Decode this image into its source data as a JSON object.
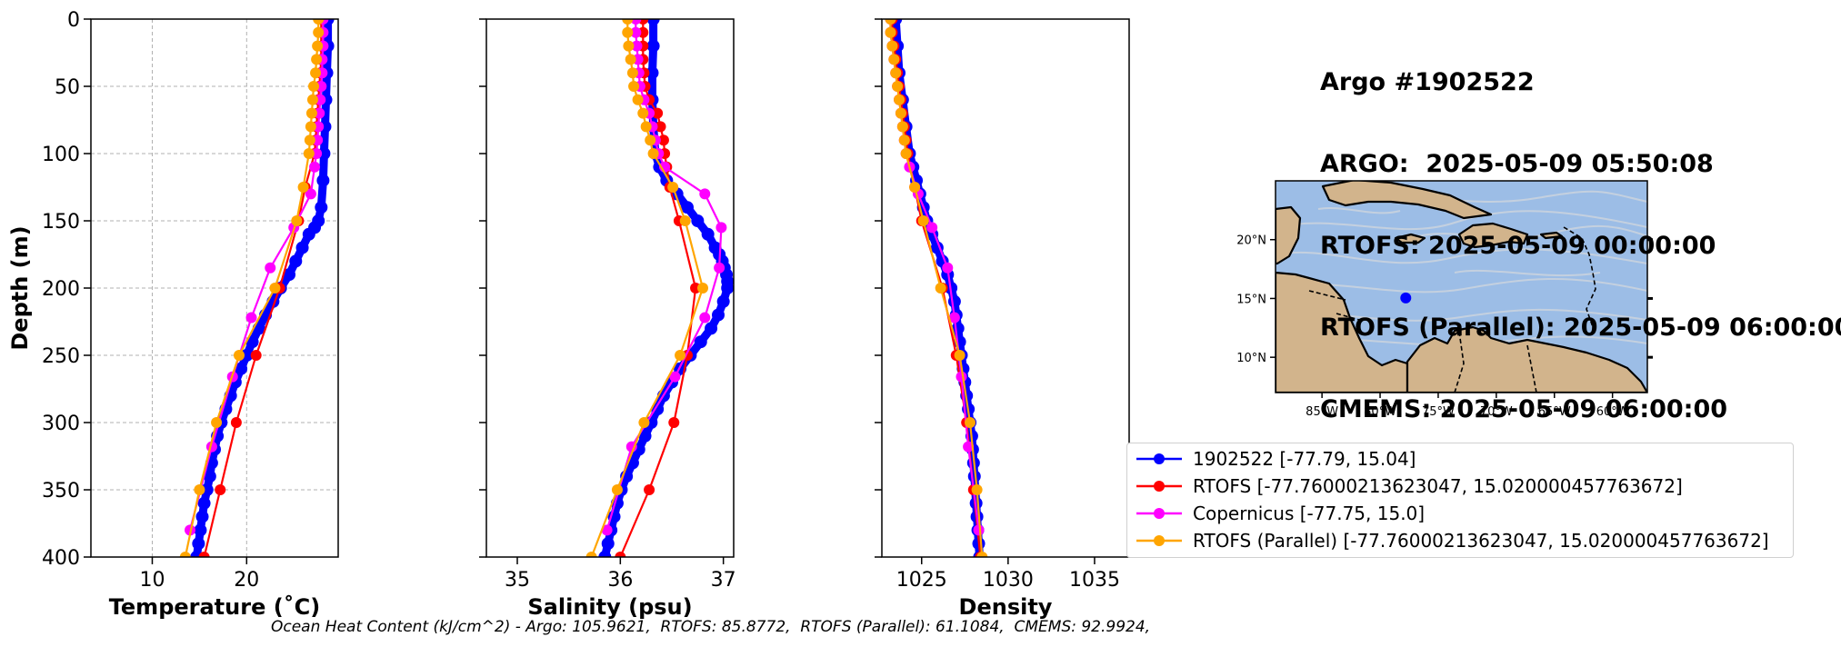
{
  "info": {
    "lines": [
      "Argo #1902522",
      "ARGO:  2025-05-09 05:50:08",
      "RTOFS: 2025-05-09 00:00:00",
      "RTOFS (Parallel): 2025-05-09 06:00:00",
      "CMEMS: 2025-05-09 06:00:00"
    ]
  },
  "legend": {
    "items": [
      {
        "label": "1902522 [-77.79, 15.04]",
        "color": "#0000ff"
      },
      {
        "label": "RTOFS [-77.76000213623047, 15.020000457763672]",
        "color": "#ff0000"
      },
      {
        "label": "Copernicus [-77.75, 15.0]",
        "color": "#ff00ff"
      },
      {
        "label": "RTOFS (Parallel) [-77.76000213623047, 15.020000457763672]",
        "color": "#ffa500"
      }
    ]
  },
  "footer": {
    "ohc": "Ocean Heat Content (kJ/cm^2) - Argo: 105.9621,  RTOFS: 85.8772,  RTOFS (Parallel): 61.1084,  CMEMS: 92.9924,"
  },
  "map": {
    "lon_ticks": [
      "85°W",
      "80°W",
      "75°W",
      "70°W",
      "65°W",
      "60°W"
    ],
    "lat_ticks": [
      "20°N",
      "15°N",
      "10°N"
    ],
    "lon_range": [
      -89,
      -57
    ],
    "lat_range": [
      7,
      25
    ],
    "marker": {
      "lon": -77.79,
      "lat": 15.04
    },
    "ocean_color": "#9cbde6",
    "land_color": "#d2b48c"
  },
  "chart_data": [
    {
      "type": "line",
      "xlabel": "Temperature (˚C)",
      "ylabel": "Depth (m)",
      "xlim": [
        3.5,
        29.7
      ],
      "ylim": [
        400,
        0
      ],
      "xticks": [
        10,
        20
      ],
      "yticks": [
        0,
        50,
        100,
        150,
        200,
        250,
        300,
        350,
        400
      ],
      "grid": true,
      "series": [
        {
          "name": "1902522 [-77.79, 15.04]",
          "color": "#0000ff",
          "depth": [
            0,
            20,
            40,
            60,
            80,
            100,
            120,
            140,
            150,
            155,
            160,
            170,
            180,
            190,
            200,
            210,
            220,
            230,
            240,
            250,
            260,
            270,
            280,
            290,
            300,
            310,
            320,
            330,
            340,
            350,
            360,
            370,
            380,
            390,
            400
          ],
          "values": [
            28.6,
            28.6,
            28.5,
            28.4,
            28.3,
            28.2,
            28.1,
            27.9,
            27.6,
            27.2,
            26.6,
            25.9,
            25.2,
            24.5,
            23.6,
            22.8,
            22.0,
            21.3,
            20.6,
            20.0,
            19.4,
            18.8,
            18.3,
            17.8,
            17.3,
            16.9,
            16.6,
            16.3,
            16.1,
            15.8,
            15.5,
            15.3,
            15.1,
            14.9,
            14.7
          ]
        },
        {
          "name": "RTOFS [-77.76000213623047, 15.020000457763672]",
          "color": "#ff0000",
          "depth": [
            0,
            10,
            20,
            30,
            40,
            50,
            60,
            70,
            80,
            90,
            100,
            125,
            150,
            200,
            250,
            300,
            350,
            400
          ],
          "values": [
            27.9,
            27.9,
            27.9,
            27.9,
            27.8,
            27.7,
            27.6,
            27.5,
            27.4,
            27.3,
            27.2,
            26.2,
            25.5,
            23.5,
            21.0,
            18.9,
            17.2,
            15.5
          ]
        },
        {
          "name": "Copernicus [-77.75, 15.0]",
          "color": "#ff00ff",
          "depth": [
            0,
            10,
            20,
            30,
            40,
            50,
            60,
            70,
            80,
            90,
            100,
            110,
            130,
            155,
            185,
            222,
            266,
            318,
            380
          ],
          "values": [
            28.1,
            28.1,
            28.1,
            28.0,
            28.0,
            27.9,
            27.8,
            27.7,
            27.6,
            27.5,
            27.4,
            27.2,
            26.8,
            25.0,
            22.5,
            20.5,
            18.5,
            16.3,
            14.0
          ]
        },
        {
          "name": "RTOFS (Parallel) [-77.76000213623047, 15.020000457763672]",
          "color": "#ffa500",
          "depth": [
            0,
            10,
            20,
            30,
            40,
            50,
            60,
            70,
            80,
            90,
            100,
            125,
            150,
            200,
            250,
            300,
            350,
            400
          ],
          "values": [
            27.6,
            27.6,
            27.5,
            27.4,
            27.3,
            27.1,
            27.0,
            26.9,
            26.8,
            26.7,
            26.6,
            26.0,
            25.3,
            23.0,
            19.2,
            16.8,
            15.0,
            13.5
          ]
        }
      ]
    },
    {
      "type": "line",
      "xlabel": "Salinity (psu)",
      "xlim": [
        34.7,
        37.1
      ],
      "ylim": [
        400,
        0
      ],
      "xticks": [
        35,
        36,
        37
      ],
      "yticks": [
        0,
        50,
        100,
        150,
        200,
        250,
        300,
        350,
        400
      ],
      "grid": false,
      "series": [
        {
          "name": "1902522 [-77.79, 15.04]",
          "color": "#0000ff",
          "depth": [
            0,
            20,
            40,
            60,
            80,
            100,
            110,
            120,
            130,
            140,
            150,
            160,
            170,
            175,
            180,
            185,
            190,
            195,
            200,
            210,
            220,
            230,
            240,
            250,
            260,
            270,
            280,
            290,
            300,
            310,
            320,
            330,
            340,
            350,
            360,
            370,
            380,
            390,
            400
          ],
          "values": [
            36.32,
            36.32,
            36.31,
            36.31,
            36.32,
            36.34,
            36.38,
            36.45,
            36.55,
            36.65,
            36.75,
            36.85,
            36.92,
            36.96,
            36.99,
            37.01,
            37.03,
            37.04,
            37.04,
            37.0,
            36.95,
            36.88,
            36.78,
            36.68,
            36.58,
            36.5,
            36.42,
            36.36,
            36.3,
            36.24,
            36.18,
            36.12,
            36.06,
            36.01,
            35.97,
            35.94,
            35.91,
            35.88,
            35.85
          ]
        },
        {
          "name": "RTOFS [-77.76000213623047, 15.020000457763672]",
          "color": "#ff0000",
          "depth": [
            0,
            10,
            20,
            30,
            40,
            50,
            60,
            70,
            80,
            90,
            100,
            110,
            125,
            150,
            200,
            250,
            300,
            350,
            400
          ],
          "values": [
            36.22,
            36.22,
            36.22,
            36.22,
            36.23,
            36.24,
            36.28,
            36.36,
            36.39,
            36.42,
            36.43,
            36.45,
            36.48,
            36.57,
            36.73,
            36.65,
            36.52,
            36.28,
            36.0
          ]
        },
        {
          "name": "Copernicus [-77.75, 15.0]",
          "color": "#ff00ff",
          "depth": [
            0,
            10,
            20,
            30,
            40,
            50,
            60,
            70,
            80,
            90,
            100,
            110,
            130,
            155,
            185,
            222,
            266,
            318,
            380
          ],
          "values": [
            36.15,
            36.15,
            36.16,
            36.17,
            36.18,
            36.19,
            36.23,
            36.28,
            36.31,
            36.34,
            36.37,
            36.43,
            36.82,
            36.98,
            36.96,
            36.82,
            36.53,
            36.11,
            35.87
          ]
        },
        {
          "name": "RTOFS (Parallel) [-77.76000213623047, 15.020000457763672]",
          "color": "#ffa500",
          "depth": [
            0,
            10,
            20,
            30,
            40,
            50,
            60,
            70,
            80,
            90,
            100,
            125,
            150,
            200,
            250,
            300,
            350,
            400
          ],
          "values": [
            36.07,
            36.07,
            36.08,
            36.1,
            36.12,
            36.13,
            36.17,
            36.22,
            36.25,
            36.29,
            36.32,
            36.51,
            36.63,
            36.8,
            36.58,
            36.23,
            35.97,
            35.72
          ]
        }
      ]
    },
    {
      "type": "line",
      "xlabel": "Density",
      "xlim": [
        1022.7,
        1037
      ],
      "ylim": [
        400,
        0
      ],
      "xticks": [
        1025,
        1030,
        1035
      ],
      "yticks": [
        0,
        50,
        100,
        150,
        200,
        250,
        300,
        350,
        400
      ],
      "grid": false,
      "series": [
        {
          "name": "1902522 [-77.79, 15.04]",
          "color": "#0000ff",
          "depth": [
            0,
            20,
            40,
            60,
            80,
            100,
            110,
            120,
            130,
            140,
            150,
            160,
            170,
            180,
            190,
            200,
            210,
            220,
            230,
            240,
            250,
            260,
            270,
            280,
            290,
            300,
            310,
            320,
            330,
            340,
            350,
            360,
            370,
            380,
            390,
            400
          ],
          "values": [
            1023.5,
            1023.6,
            1023.7,
            1023.9,
            1024.1,
            1024.3,
            1024.5,
            1024.7,
            1024.9,
            1025.1,
            1025.3,
            1025.6,
            1025.9,
            1026.2,
            1026.5,
            1026.7,
            1026.9,
            1027.0,
            1027.1,
            1027.2,
            1027.3,
            1027.4,
            1027.5,
            1027.6,
            1027.7,
            1027.8,
            1027.9,
            1027.95,
            1028.0,
            1028.05,
            1028.1,
            1028.15,
            1028.2,
            1028.25,
            1028.3,
            1028.35
          ]
        },
        {
          "name": "RTOFS [-77.76000213623047, 15.020000457763672]",
          "color": "#ff0000",
          "depth": [
            0,
            10,
            20,
            30,
            40,
            50,
            60,
            70,
            80,
            90,
            100,
            125,
            150,
            200,
            250,
            300,
            350,
            400
          ],
          "values": [
            1023.3,
            1023.3,
            1023.4,
            1023.5,
            1023.6,
            1023.7,
            1023.8,
            1023.9,
            1024.0,
            1024.1,
            1024.2,
            1024.6,
            1025.0,
            1026.2,
            1027.0,
            1027.6,
            1028.0,
            1028.4
          ]
        },
        {
          "name": "Copernicus [-77.75, 15.0]",
          "color": "#ff00ff",
          "depth": [
            0,
            10,
            20,
            30,
            40,
            50,
            60,
            70,
            80,
            90,
            100,
            110,
            130,
            155,
            185,
            222,
            266,
            318,
            380
          ],
          "values": [
            1023.2,
            1023.2,
            1023.3,
            1023.4,
            1023.5,
            1023.6,
            1023.7,
            1023.8,
            1023.9,
            1024.0,
            1024.1,
            1024.3,
            1024.8,
            1025.6,
            1026.5,
            1026.9,
            1027.3,
            1027.7,
            1028.3
          ]
        },
        {
          "name": "RTOFS (Parallel) [-77.76000213623047, 15.020000457763672]",
          "color": "#ffa500",
          "depth": [
            0,
            10,
            20,
            30,
            40,
            50,
            60,
            70,
            80,
            90,
            100,
            125,
            150,
            200,
            250,
            300,
            350,
            400
          ],
          "values": [
            1023.2,
            1023.2,
            1023.3,
            1023.4,
            1023.5,
            1023.6,
            1023.7,
            1023.8,
            1023.9,
            1024.0,
            1024.1,
            1024.6,
            1025.1,
            1026.1,
            1027.2,
            1027.8,
            1028.2,
            1028.5
          ]
        }
      ]
    }
  ]
}
